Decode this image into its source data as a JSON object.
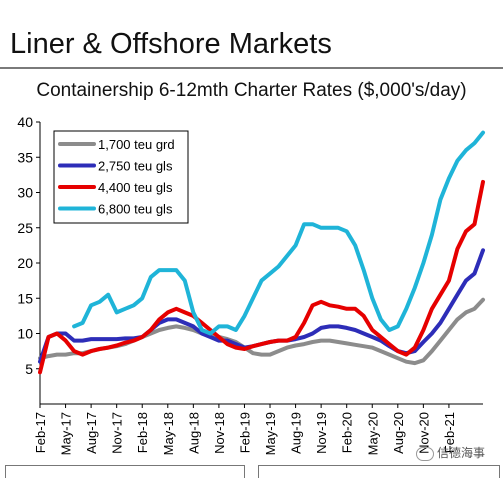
{
  "page": {
    "title": "Liner & Offshore Markets",
    "watermark": "信德海事"
  },
  "chart_data": {
    "type": "line",
    "title": "Containership 6-12mth Charter Rates ($,000's/day)",
    "xlabel": "",
    "ylabel": "",
    "ylim": [
      0,
      40
    ],
    "yticks": [
      5,
      10,
      15,
      20,
      25,
      30,
      35,
      40
    ],
    "xtick_labels": [
      "Feb-17",
      "May-17",
      "Aug-17",
      "Nov-17",
      "Feb-18",
      "May-18",
      "Aug-18",
      "Nov-18",
      "Feb-19",
      "May-19",
      "Aug-19",
      "Nov-19",
      "Feb-20",
      "May-20",
      "Aug-20",
      "Nov-20",
      "Feb-21"
    ],
    "x_start_month": "Feb-17",
    "legend_position": "top-left",
    "grid": false,
    "series": [
      {
        "name": "1,700 teu grd",
        "color": "#8c8c8c",
        "values": [
          6.5,
          6.8,
          7.0,
          7.0,
          7.2,
          7.2,
          7.5,
          7.8,
          8.0,
          8.2,
          8.5,
          9.0,
          9.5,
          10.0,
          10.5,
          10.8,
          11.0,
          10.8,
          10.5,
          10.0,
          9.8,
          9.5,
          9.2,
          8.8,
          8.0,
          7.2,
          7.0,
          7.0,
          7.5,
          8.0,
          8.3,
          8.5,
          8.8,
          9.0,
          9.0,
          8.8,
          8.6,
          8.4,
          8.2,
          8.0,
          7.5,
          7.0,
          6.5,
          6.0,
          5.8,
          6.2,
          7.5,
          9.0,
          10.5,
          12.0,
          13.0,
          13.5,
          14.8
        ]
      },
      {
        "name": "2,750 teu gls",
        "color": "#2d2db8",
        "values": [
          6.0,
          9.5,
          10.0,
          10.0,
          9.0,
          9.0,
          9.2,
          9.2,
          9.2,
          9.2,
          9.3,
          9.3,
          9.5,
          10.5,
          11.5,
          12.0,
          12.0,
          11.5,
          11.0,
          10.0,
          9.5,
          9.0,
          9.0,
          8.5,
          8.0,
          8.2,
          8.5,
          8.8,
          9.0,
          9.0,
          9.2,
          9.5,
          10.0,
          10.8,
          11.0,
          11.0,
          10.8,
          10.5,
          10.0,
          9.5,
          9.0,
          8.2,
          7.5,
          7.2,
          7.5,
          8.8,
          10.0,
          11.5,
          13.5,
          15.5,
          17.5,
          18.5,
          21.8
        ]
      },
      {
        "name": "4,400 teu gls",
        "color": "#e60000",
        "values": [
          4.5,
          9.5,
          10.0,
          9.0,
          7.5,
          7.0,
          7.5,
          7.8,
          8.0,
          8.3,
          8.7,
          9.0,
          9.5,
          10.5,
          12.0,
          13.0,
          13.5,
          13.0,
          12.5,
          11.5,
          10.5,
          9.5,
          8.5,
          8.0,
          7.8,
          8.2,
          8.5,
          8.8,
          9.0,
          9.0,
          9.5,
          11.5,
          14.0,
          14.5,
          14.0,
          13.8,
          13.5,
          13.5,
          12.5,
          10.5,
          9.5,
          8.5,
          7.5,
          7.0,
          8.0,
          10.5,
          13.5,
          15.5,
          17.5,
          22.0,
          24.5,
          25.5,
          31.5
        ]
      },
      {
        "name": "6,800 teu gls",
        "color": "#1fb4d8",
        "values": [
          null,
          null,
          null,
          null,
          11.0,
          11.5,
          14.0,
          14.5,
          15.5,
          13.0,
          13.5,
          14.0,
          15.0,
          18.0,
          19.0,
          19.0,
          19.0,
          17.5,
          13.0,
          10.5,
          10.0,
          11.0,
          11.0,
          10.5,
          12.5,
          15.0,
          17.5,
          18.5,
          19.5,
          21.0,
          22.5,
          25.5,
          25.5,
          25.0,
          25.0,
          25.0,
          24.5,
          22.5,
          19.0,
          15.0,
          12.0,
          10.5,
          11.0,
          13.5,
          16.5,
          20.0,
          24.0,
          29.0,
          32.0,
          34.5,
          36.0,
          37.0,
          38.5
        ]
      }
    ]
  }
}
